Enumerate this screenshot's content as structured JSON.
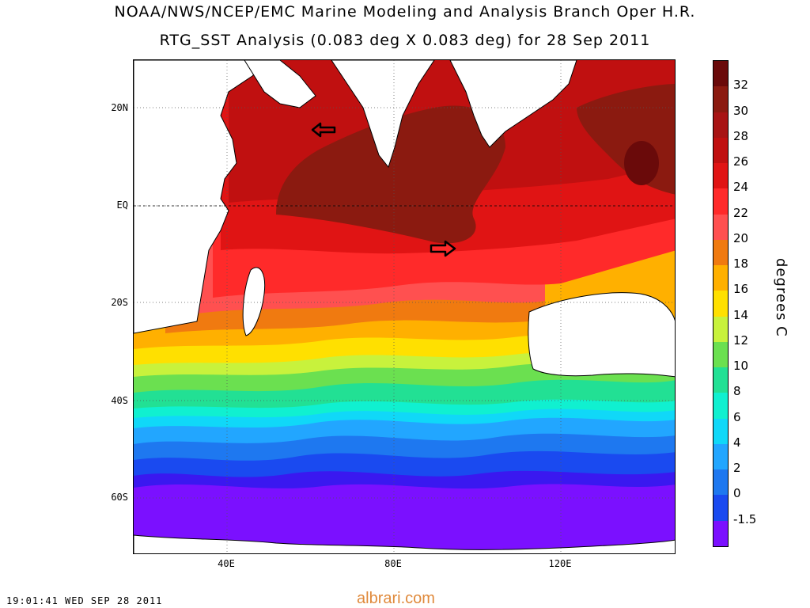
{
  "header": {
    "title_line1": "NOAA/NWS/NCEP/EMC Marine Modeling and Analysis Branch Oper H.R.",
    "title_line2": "RTG_SST Analysis (0.083 deg X 0.083 deg) for 28 Sep 2011"
  },
  "map": {
    "lat_labels": [
      "20N",
      "EQ",
      "20S",
      "40S",
      "60S"
    ],
    "lon_labels": [
      "40E",
      "80E",
      "120E"
    ],
    "colors": {
      "land": "#ffffff",
      "t_above_30": "#8b1a10",
      "t_28_30": "#c01010",
      "t_26_28": "#e01414",
      "t_24_26": "#ff2a2a",
      "t_22_24": "#ff5050",
      "t_20_22": "#f07a10",
      "t_18_20": "#ffb000",
      "t_16_18": "#ffe000",
      "t_14_16": "#c8f23c",
      "t_12_14": "#6be050",
      "t_10_12": "#22e094",
      "t_8_10": "#10f0d0",
      "t_6_8": "#10d8f8",
      "t_4_6": "#22a6ff",
      "t_2_4": "#1e78f0",
      "t_0_2": "#1a4af0",
      "t_below_0": "#3a18f0",
      "t_below_min": "#7b10ff"
    },
    "arrows": [
      "arrow-icon-arabian-sea",
      "arrow-icon-central-indian-ocean"
    ]
  },
  "colorbar": {
    "labels": [
      "32",
      "30",
      "28",
      "26",
      "24",
      "22",
      "20",
      "18",
      "16",
      "14",
      "12",
      "10",
      "8",
      "6",
      "4",
      "2",
      "0",
      "-1.5"
    ],
    "units": "degrees C",
    "colors": [
      "#6a0a0a",
      "#8b1a10",
      "#a81414",
      "#c01010",
      "#e01414",
      "#ff2a2a",
      "#ff5050",
      "#f07a10",
      "#ffb000",
      "#ffe000",
      "#c8f23c",
      "#6be050",
      "#22e094",
      "#10f0d0",
      "#10d8f8",
      "#22a6ff",
      "#1e78f0",
      "#1a4af0",
      "#7b10ff"
    ]
  },
  "footer": {
    "timestamp": "19:01:41  WED SEP 28 2011",
    "watermark": "albrari.com"
  }
}
